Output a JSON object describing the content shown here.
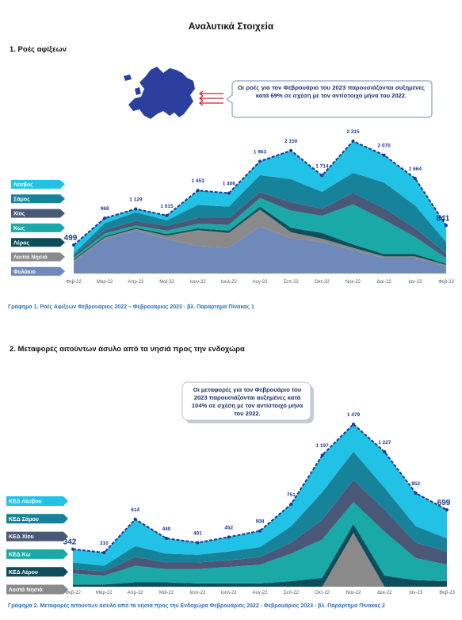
{
  "title": "Αναλυτικά Στοιχεία",
  "sections": [
    {
      "heading": "1.  Ροές αφίξεων",
      "callout": "Οι ροές για τον Φεβρουάριο του 2023 παρουσιάζονται αυξημένες κατά 69% σε σχέση με τον αντίστοιχο μήνα του 2022.",
      "caption": "Γράφημα 1. Ροές Αφίξεων Φεβρουάριος 2022 – Φεβρουάριος 2023 - βλ. Παράρτημα  Πίνακας 1"
    },
    {
      "heading": "2.  Μεταφορές αιτούντων άσυλο από τα νησιά προς την ενδοχώρα",
      "callout": "Οι μεταφορές για τον Φεβρουάριο του 2023 παρουσιάζονται αυξημένες κατά 104% σε σχέση με τον αντίστοιχο μήνα του 2022.",
      "caption": "Γράφημα 2. Μεταφορές αιτούντων άσυλο από τα νησιά προς την Ενδοχώρα Φεβρουάριος 2022 - Φεβρουάριος 2023 - βλ. Παράρτημα Πίνακας 2"
    }
  ],
  "chart_data": [
    {
      "type": "stacked-area",
      "categories": [
        "Φεβ-22",
        "Μαρ-22",
        "Απρ-22",
        "Μαϊ-22",
        "Ιουν-22",
        "Ιουλ-22",
        "Αυγ-22",
        "Σεπ-22",
        "Οκτ-22",
        "Νοε-22",
        "Δεκ-22",
        "Ιαν-23",
        "Φεβ-23"
      ],
      "series": [
        {
          "name": "Λέσβος",
          "color": "#22c1e6",
          "values": [
            149,
            88,
            59,
            85,
            253,
            236,
            243,
            500,
            284,
            555,
            480,
            474,
            291
          ]
        },
        {
          "name": "Σάμος",
          "color": "#16839b",
          "values": [
            30,
            120,
            150,
            100,
            230,
            200,
            300,
            400,
            300,
            350,
            450,
            400,
            200
          ]
        },
        {
          "name": "Χίος",
          "color": "#4a5878",
          "values": [
            40,
            60,
            80,
            80,
            100,
            120,
            100,
            150,
            120,
            200,
            200,
            150,
            80
          ]
        },
        {
          "name": "Κως",
          "color": "#1aa9a7",
          "values": [
            30,
            50,
            40,
            60,
            80,
            100,
            150,
            300,
            300,
            700,
            600,
            300,
            100
          ]
        },
        {
          "name": "Λέρος",
          "color": "#0e4d5a",
          "values": [
            20,
            20,
            20,
            30,
            30,
            40,
            50,
            80,
            100,
            60,
            40,
            40,
            20
          ]
        },
        {
          "name": "Λοιπά Νησιά",
          "color": "#8a8a8a",
          "values": [
            30,
            30,
            30,
            60,
            280,
            260,
            300,
            100,
            60,
            40,
            30,
            30,
            20
          ]
        },
        {
          "name": "Φυλάκιο",
          "color": "#6f89ba",
          "values": [
            200,
            600,
            750,
            600,
            480,
            450,
            820,
            620,
            550,
            410,
            270,
            270,
            130
          ]
        }
      ],
      "total": {
        "color": "#1d3a8f",
        "values": [
          499,
          968,
          1129,
          1015,
          1453,
          1406,
          1963,
          2150,
          1714,
          2315,
          2070,
          1664,
          841
        ],
        "value_labels": [
          "499",
          "968",
          "1 129",
          "1 015",
          "1 453",
          "1 406",
          "1 963",
          "2 150",
          "1 714",
          "2 315",
          "2 070",
          "1 664",
          "841"
        ]
      }
    },
    {
      "type": "stacked-area",
      "categories": [
        "Φεβ-22",
        "Μαρ-22",
        "Απρ-22",
        "Μαϊ-22",
        "Ιουν-22",
        "Ιουλ-22",
        "Αυγ-22",
        "Σεπ-22",
        "Οκτ-22",
        "Νοε-22",
        "Δεκ-22",
        "Ιαν-23",
        "Φεβ-23"
      ],
      "series": [
        {
          "name": "ΚΕΔ Λέσβου",
          "color": "#22c1e6",
          "values": [
            122,
            120,
            244,
            140,
            111,
            132,
            148,
            201,
            337,
            250,
            327,
            302,
            259
          ]
        },
        {
          "name": "ΚΕΔ Σάμου",
          "color": "#16839b",
          "values": [
            60,
            50,
            100,
            80,
            70,
            80,
            90,
            150,
            250,
            259,
            200,
            150,
            120
          ]
        },
        {
          "name": "ΚΕΔ Χίου",
          "color": "#4a5878",
          "values": [
            40,
            40,
            80,
            60,
            60,
            60,
            70,
            100,
            180,
            200,
            200,
            140,
            120
          ]
        },
        {
          "name": "ΚΕΔ Κω",
          "color": "#1aa9a7",
          "values": [
            100,
            80,
            150,
            120,
            130,
            150,
            170,
            250,
            350,
            200,
            400,
            200,
            150
          ]
        },
        {
          "name": "ΚΕΔ Λέρου",
          "color": "#0e4d5a",
          "values": [
            20,
            20,
            40,
            40,
            30,
            30,
            30,
            50,
            80,
            80,
            100,
            60,
            50
          ]
        },
        {
          "name": "Λοιπά Νησιά",
          "color": "#8a8a8a",
          "values": [
            0,
            0,
            0,
            0,
            0,
            0,
            0,
            0,
            0,
            490,
            0,
            0,
            0
          ]
        }
      ],
      "total": {
        "color": "#1d3a8f",
        "values": [
          342,
          310,
          614,
          440,
          401,
          452,
          508,
          751,
          1197,
          1479,
          1227,
          852,
          699
        ],
        "value_labels": [
          "342",
          "310",
          "614",
          "440",
          "401",
          "452",
          "508",
          "751",
          "1 197",
          "1 479",
          "1 227",
          "852",
          "699"
        ]
      }
    }
  ]
}
